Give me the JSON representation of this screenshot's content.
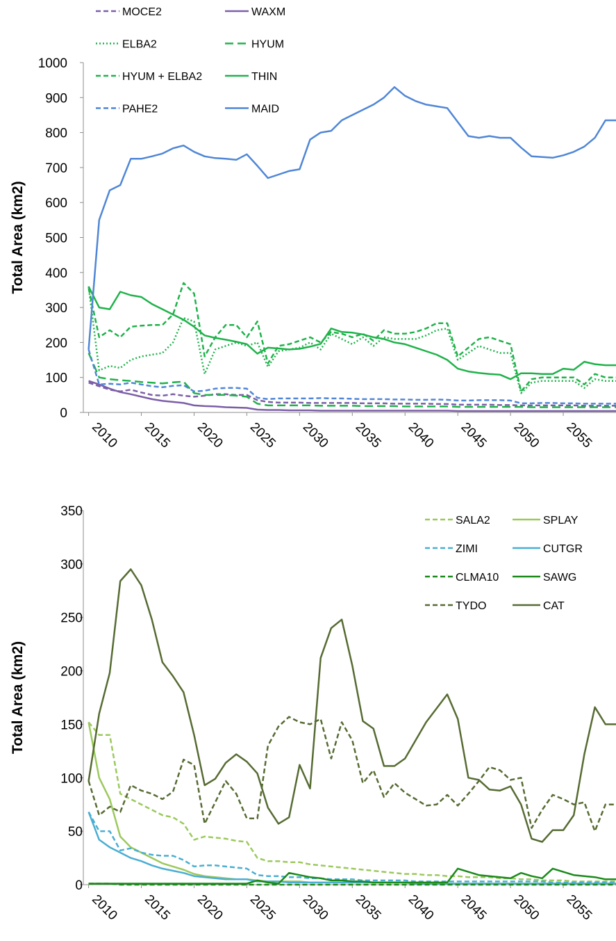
{
  "chart_data": [
    {
      "type": "line",
      "title": "",
      "xlabel": "",
      "ylabel": "Total Area (km2)",
      "ylim": [
        0,
        1000
      ],
      "yticks": [
        "0",
        "100",
        "200",
        "300",
        "400",
        "500",
        "600",
        "700",
        "800",
        "900",
        "1000"
      ],
      "xticks": [
        "2010",
        "2015",
        "2020",
        "2025",
        "2030",
        "2035",
        "2040",
        "2045",
        "2050",
        "2055"
      ],
      "xlim": [
        2009.5,
        2060
      ],
      "grid": false,
      "legend_position": "top-left",
      "x": [
        2010,
        2011,
        2012,
        2013,
        2014,
        2015,
        2016,
        2017,
        2018,
        2019,
        2020,
        2021,
        2022,
        2023,
        2024,
        2025,
        2026,
        2027,
        2028,
        2029,
        2030,
        2031,
        2032,
        2033,
        2034,
        2035,
        2036,
        2037,
        2038,
        2039,
        2040,
        2041,
        2042,
        2043,
        2044,
        2045,
        2046,
        2047,
        2048,
        2049,
        2050,
        2051,
        2052,
        2053,
        2054,
        2055,
        2056,
        2057,
        2058,
        2059,
        2060
      ],
      "series": [
        {
          "name": "MOCE2",
          "color": "#7b5ea7",
          "dash": "dashed",
          "values": [
            85,
            75,
            65,
            60,
            65,
            57,
            50,
            48,
            52,
            48,
            45,
            48,
            52,
            52,
            50,
            50,
            35,
            30,
            28,
            28,
            28,
            27,
            27,
            27,
            27,
            27,
            26,
            26,
            26,
            25,
            25,
            25,
            25,
            24,
            24,
            22,
            22,
            22,
            22,
            21,
            21,
            20,
            20,
            20,
            20,
            20,
            20,
            19,
            19,
            19,
            19
          ]
        },
        {
          "name": "WAXM",
          "color": "#7b5ea7",
          "dash": "solid",
          "values": [
            90,
            80,
            68,
            58,
            52,
            45,
            38,
            33,
            30,
            27,
            20,
            18,
            17,
            15,
            14,
            13,
            8,
            7,
            7,
            6,
            6,
            6,
            5,
            5,
            5,
            5,
            5,
            5,
            5,
            5,
            5,
            5,
            5,
            5,
            5,
            4,
            4,
            4,
            4,
            4,
            4,
            4,
            4,
            4,
            4,
            4,
            4,
            4,
            4,
            4,
            4
          ]
        },
        {
          "name": "ELBA2",
          "color": "#1fb24a",
          "dash": "dotted",
          "values": [
            360,
            120,
            133,
            127,
            150,
            160,
            165,
            170,
            200,
            270,
            260,
            110,
            180,
            190,
            200,
            190,
            200,
            130,
            175,
            180,
            185,
            200,
            180,
            225,
            210,
            195,
            215,
            190,
            215,
            210,
            210,
            210,
            220,
            235,
            240,
            150,
            170,
            190,
            180,
            170,
            170,
            55,
            85,
            90,
            90,
            90,
            90,
            70,
            95,
            90,
            90
          ]
        },
        {
          "name": "HYUM",
          "color": "#1fb24a",
          "dash": "dashed-long",
          "values": [
            170,
            100,
            95,
            92,
            90,
            87,
            85,
            83,
            86,
            88,
            55,
            50,
            50,
            50,
            48,
            45,
            25,
            20,
            20,
            20,
            20,
            20,
            19,
            19,
            19,
            19,
            18,
            18,
            18,
            18,
            17,
            17,
            17,
            17,
            17,
            16,
            16,
            16,
            16,
            16,
            16,
            16,
            15,
            15,
            15,
            15,
            15,
            15,
            15,
            15,
            15
          ]
        },
        {
          "name": "HYUM + ELBA2",
          "color": "#1fb24a",
          "dash": "dashed",
          "values": [
            355,
            215,
            235,
            215,
            245,
            248,
            250,
            250,
            280,
            370,
            340,
            160,
            215,
            250,
            250,
            215,
            260,
            140,
            190,
            195,
            205,
            215,
            200,
            230,
            225,
            215,
            225,
            205,
            235,
            225,
            225,
            230,
            240,
            255,
            255,
            160,
            185,
            210,
            215,
            205,
            195,
            60,
            95,
            100,
            100,
            100,
            100,
            80,
            110,
            100,
            100
          ]
        },
        {
          "name": "THIN",
          "color": "#1fb24a",
          "dash": "solid",
          "values": [
            360,
            300,
            295,
            345,
            335,
            330,
            310,
            295,
            280,
            265,
            245,
            220,
            213,
            208,
            202,
            195,
            168,
            185,
            183,
            180,
            182,
            188,
            196,
            240,
            230,
            228,
            223,
            215,
            210,
            200,
            195,
            185,
            175,
            165,
            150,
            125,
            117,
            113,
            110,
            108,
            95,
            112,
            112,
            110,
            110,
            125,
            122,
            145,
            138,
            135,
            135
          ]
        },
        {
          "name": "PAHE2",
          "color": "#4f86d6",
          "dash": "dashed",
          "values": [
            180,
            80,
            82,
            80,
            85,
            80,
            75,
            72,
            76,
            78,
            60,
            62,
            68,
            70,
            70,
            68,
            42,
            38,
            40,
            40,
            40,
            40,
            41,
            40,
            40,
            39,
            38,
            38,
            38,
            37,
            37,
            36,
            36,
            37,
            36,
            34,
            34,
            35,
            35,
            35,
            34,
            26,
            26,
            27,
            27,
            26,
            26,
            25,
            25,
            25,
            25
          ]
        },
        {
          "name": "MAID",
          "color": "#4f86d6",
          "dash": "solid",
          "values": [
            180,
            550,
            635,
            650,
            725,
            725,
            732,
            740,
            755,
            763,
            745,
            732,
            727,
            725,
            722,
            738,
            705,
            670,
            680,
            690,
            695,
            780,
            800,
            805,
            835,
            850,
            865,
            880,
            900,
            930,
            905,
            890,
            880,
            875,
            870,
            830,
            790,
            785,
            790,
            785,
            785,
            757,
            732,
            730,
            728,
            735,
            745,
            760,
            785,
            835,
            835
          ]
        }
      ]
    },
    {
      "type": "line",
      "title": "",
      "xlabel": "",
      "ylabel": "Total Area (km2)",
      "ylim": [
        0,
        350
      ],
      "yticks": [
        "0",
        "50",
        "100",
        "150",
        "200",
        "250",
        "300",
        "350"
      ],
      "xticks": [
        "2010",
        "2015",
        "2020",
        "2025",
        "2030",
        "2035",
        "2040",
        "2045",
        "2050",
        "2055"
      ],
      "xlim": [
        2009.5,
        2060
      ],
      "grid": false,
      "legend_position": "top-right",
      "x": [
        2010,
        2011,
        2012,
        2013,
        2014,
        2015,
        2016,
        2017,
        2018,
        2019,
        2020,
        2021,
        2022,
        2023,
        2024,
        2025,
        2026,
        2027,
        2028,
        2029,
        2030,
        2031,
        2032,
        2033,
        2034,
        2035,
        2036,
        2037,
        2038,
        2039,
        2040,
        2041,
        2042,
        2043,
        2044,
        2045,
        2046,
        2047,
        2048,
        2049,
        2050,
        2051,
        2052,
        2053,
        2054,
        2055,
        2056,
        2057,
        2058,
        2059,
        2060
      ],
      "series": [
        {
          "name": "SALA2",
          "color": "#9bc95c",
          "dash": "dashed",
          "values": [
            152,
            140,
            140,
            85,
            80,
            75,
            70,
            65,
            63,
            57,
            42,
            45,
            44,
            43,
            41,
            40,
            25,
            22,
            22,
            21,
            21,
            19,
            18,
            17,
            16,
            15,
            14,
            13,
            12,
            11,
            10,
            10,
            9,
            9,
            8,
            8,
            7,
            7,
            7,
            6,
            6,
            5,
            5,
            4,
            4,
            4,
            3,
            3,
            3,
            3,
            3
          ]
        },
        {
          "name": "SPLAY",
          "color": "#9bc95c",
          "dash": "solid",
          "values": [
            152,
            100,
            80,
            45,
            35,
            30,
            25,
            20,
            17,
            14,
            10,
            8,
            7,
            6,
            5,
            5,
            4,
            3,
            3,
            3,
            3,
            2,
            2,
            2,
            2,
            2,
            2,
            2,
            2,
            2,
            2,
            1,
            1,
            1,
            1,
            1,
            1,
            1,
            1,
            1,
            1,
            1,
            1,
            1,
            1,
            1,
            1,
            1,
            1,
            1,
            1
          ]
        },
        {
          "name": "ZIMI",
          "color": "#4aaed2",
          "dash": "dashed",
          "values": [
            68,
            50,
            50,
            32,
            34,
            30,
            28,
            27,
            27,
            23,
            17,
            18,
            18,
            17,
            16,
            15,
            9,
            8,
            8,
            7,
            7,
            6,
            6,
            5,
            5,
            5,
            4,
            4,
            4,
            4,
            4,
            3,
            3,
            3,
            3,
            3,
            3,
            3,
            3,
            3,
            3,
            3,
            3,
            3,
            2,
            2,
            2,
            2,
            2,
            2,
            2
          ]
        },
        {
          "name": "CUTGR",
          "color": "#4aaed2",
          "dash": "solid",
          "values": [
            68,
            42,
            35,
            30,
            25,
            22,
            18,
            15,
            13,
            11,
            8,
            7,
            6,
            5,
            5,
            5,
            3,
            3,
            3,
            2,
            2,
            2,
            2,
            2,
            2,
            2,
            2,
            2,
            2,
            2,
            2,
            1,
            1,
            1,
            1,
            1,
            1,
            1,
            1,
            1,
            1,
            1,
            1,
            1,
            1,
            1,
            1,
            1,
            1,
            1,
            1
          ]
        },
        {
          "name": "CLMA10",
          "color": "#1a8a1a",
          "dash": "dashed",
          "values": [
            1,
            1,
            1,
            0,
            0,
            0,
            0,
            0,
            0,
            0,
            0,
            0,
            0,
            0,
            0,
            0,
            0,
            0,
            0,
            0,
            0,
            0,
            0,
            0,
            0,
            0,
            0,
            0,
            0,
            0,
            0,
            0,
            0,
            0,
            0,
            0,
            0,
            0,
            0,
            0,
            0,
            0,
            0,
            0,
            0,
            0,
            0,
            0,
            0,
            0,
            0
          ]
        },
        {
          "name": "SAWG",
          "color": "#1a8a1a",
          "dash": "solid",
          "values": [
            1,
            1,
            1,
            1,
            1,
            1,
            1,
            1,
            1,
            1,
            1,
            1,
            1,
            1,
            1,
            1,
            4,
            2,
            1,
            11,
            9,
            7,
            6,
            4,
            4,
            3,
            3,
            2,
            2,
            2,
            2,
            2,
            2,
            2,
            2,
            15,
            12,
            9,
            8,
            7,
            6,
            11,
            8,
            6,
            15,
            12,
            9,
            8,
            7,
            5,
            5
          ]
        },
        {
          "name": "TYDO",
          "color": "#566b32",
          "dash": "dashed",
          "values": [
            97,
            65,
            73,
            68,
            93,
            88,
            85,
            80,
            87,
            117,
            112,
            57,
            77,
            97,
            85,
            62,
            62,
            130,
            148,
            157,
            152,
            150,
            155,
            118,
            152,
            135,
            95,
            107,
            82,
            95,
            86,
            80,
            74,
            75,
            84,
            74,
            85,
            97,
            110,
            107,
            98,
            100,
            53,
            70,
            84,
            80,
            75,
            77,
            50,
            75,
            75
          ]
        },
        {
          "name": "CAT",
          "color": "#566b32",
          "dash": "solid",
          "values": [
            97,
            160,
            198,
            284,
            295,
            280,
            248,
            208,
            195,
            180,
            140,
            93,
            99,
            114,
            122,
            115,
            104,
            72,
            57,
            63,
            112,
            90,
            212,
            240,
            248,
            205,
            153,
            146,
            111,
            111,
            118,
            135,
            152,
            165,
            178,
            155,
            100,
            98,
            89,
            88,
            92,
            75,
            43,
            40,
            51,
            51,
            65,
            122,
            166,
            150,
            150
          ]
        }
      ]
    }
  ]
}
